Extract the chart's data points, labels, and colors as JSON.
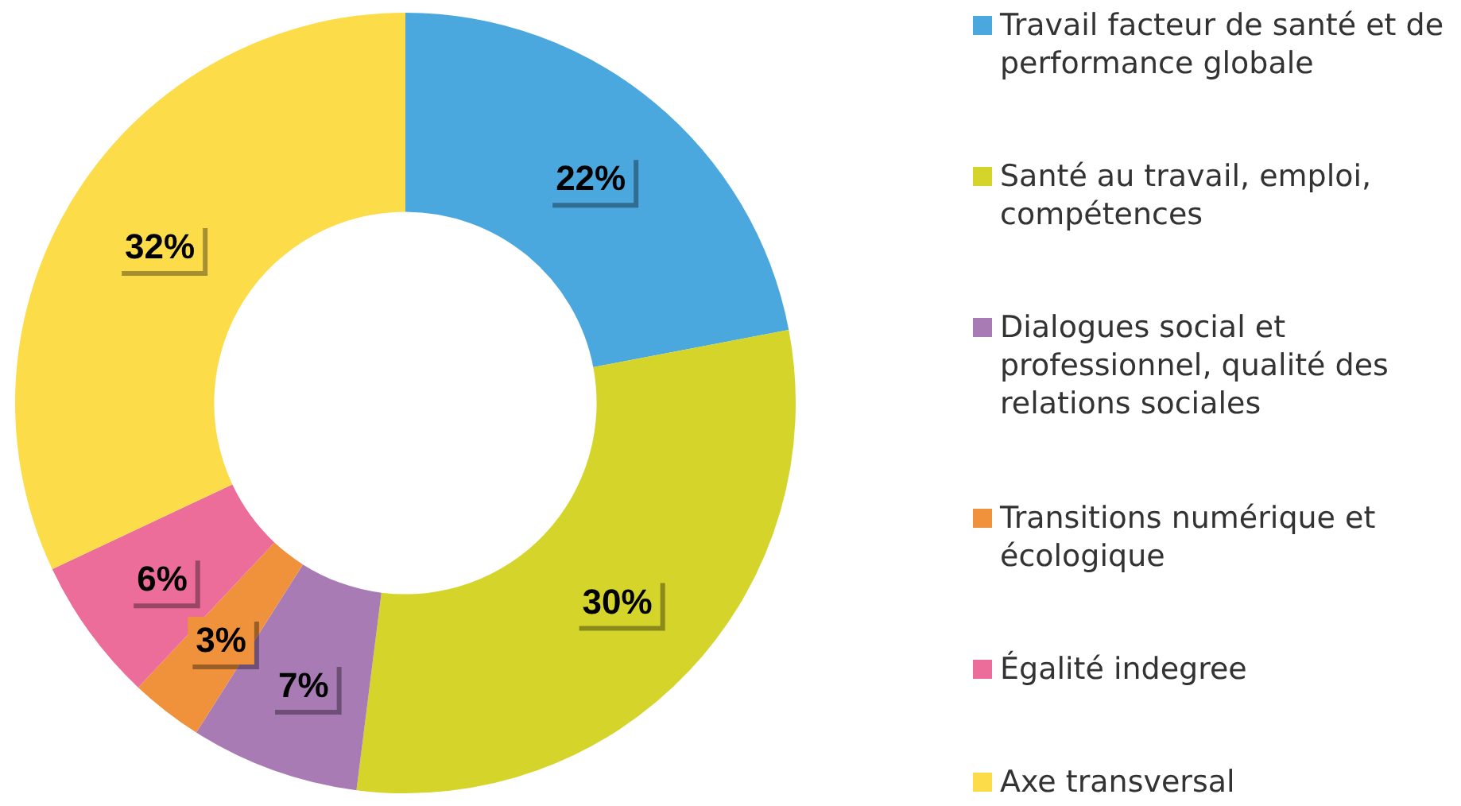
{
  "chart_data": {
    "type": "donut",
    "categories": [
      "Travail facteur de santé et de performance globale",
      "Santé au travail, emploi, compétences",
      "Dialogues social et professionnel, qualité des relations sociales",
      "Transitions numérique et écologique",
      "Égalité indegree",
      "Axe transversal"
    ],
    "values": [
      22,
      30,
      7,
      3,
      6,
      32
    ],
    "colors": [
      "#4aa8df",
      "#d4d42a",
      "#a97bb5",
      "#f0913c",
      "#ec6d99",
      "#fddc4a"
    ],
    "value_labels": [
      "22%",
      "30%",
      "7%",
      "3%",
      "6%",
      "32%"
    ],
    "legend": "right"
  }
}
